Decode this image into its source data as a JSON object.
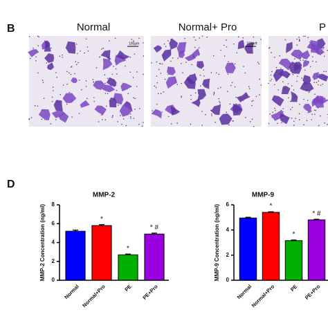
{
  "panel_b": {
    "label": "B",
    "images": [
      {
        "title": "Normal",
        "scale": "100μm"
      },
      {
        "title": "Normal+ Pro",
        "scale": "100μm"
      },
      {
        "title": "P"
      }
    ]
  },
  "panel_d": {
    "label": "D"
  },
  "chart_data": [
    {
      "type": "bar",
      "title": "MMP-2",
      "ylabel": "MMP-2 Concentration (ng/ml)",
      "categories": [
        "Normal",
        "Normal+Pro",
        "PE",
        "PE+Pro"
      ],
      "values": [
        5.2,
        5.8,
        2.7,
        4.9
      ],
      "errors": [
        0.12,
        0.1,
        0.08,
        0.1
      ],
      "colors": [
        "#0000ff",
        "#ff0000",
        "#00b000",
        "#9b00e0"
      ],
      "annotations": [
        {
          "category": "Normal+Pro",
          "text": "*"
        },
        {
          "category": "PE",
          "text": "*"
        },
        {
          "category": "PE+Pro",
          "text": "* #"
        }
      ],
      "ylim": [
        0,
        8
      ],
      "yticks": [
        0,
        2,
        4,
        6,
        8
      ]
    },
    {
      "type": "bar",
      "title": "MMP-9",
      "ylabel": "MMP-9 Concentration (ng/ml)",
      "categories": [
        "Normal",
        "Normal+Pro",
        "PE",
        "PE+Pro"
      ],
      "values": [
        4.95,
        5.4,
        3.15,
        4.8
      ],
      "errors": [
        0.06,
        0.05,
        0.05,
        0.05
      ],
      "colors": [
        "#0000ff",
        "#ff0000",
        "#00b000",
        "#9b00e0"
      ],
      "annotations": [
        {
          "category": "Normal+Pro",
          "text": "*"
        },
        {
          "category": "PE",
          "text": "*"
        },
        {
          "category": "PE+Pro",
          "text": "* #"
        }
      ],
      "ylim": [
        0,
        6
      ],
      "yticks": [
        0,
        2,
        4,
        6
      ]
    }
  ]
}
